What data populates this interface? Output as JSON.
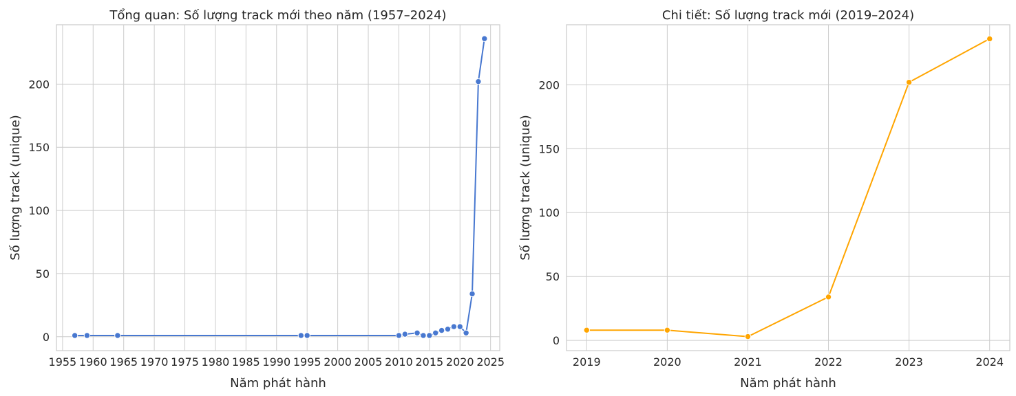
{
  "chart_data": [
    {
      "type": "line",
      "title": "Tổng quan: Số lượng track mới theo năm (1957–2024)",
      "xlabel": "Năm phát hành",
      "ylabel": "Số lượng track (unique)",
      "xlim": [
        1954,
        2026.5
      ],
      "ylim": [
        -11,
        247
      ],
      "x_ticks": [
        1955,
        1960,
        1965,
        1970,
        1975,
        1980,
        1985,
        1990,
        1995,
        2000,
        2005,
        2010,
        2015,
        2020,
        2025
      ],
      "y_ticks": [
        0,
        50,
        100,
        150,
        200
      ],
      "grid": true,
      "color": "#4878d0",
      "x": [
        1957,
        1959,
        1964,
        1994,
        1995,
        2010,
        2011,
        2013,
        2014,
        2015,
        2016,
        2017,
        2018,
        2019,
        2020,
        2021,
        2022,
        2023,
        2024
      ],
      "y": [
        1,
        1,
        1,
        1,
        1,
        1,
        2,
        3,
        1,
        1,
        3,
        5,
        6,
        8,
        8,
        3,
        34,
        202,
        236
      ]
    },
    {
      "type": "line",
      "title": "Chi tiết: Số lượng track mới (2019–2024)",
      "xlabel": "Năm phát hành",
      "ylabel": "Số lượng track (unique)",
      "xlim": [
        2018.75,
        2024.25
      ],
      "ylim": [
        -8,
        247
      ],
      "x_ticks": [
        2019,
        2020,
        2021,
        2022,
        2023,
        2024
      ],
      "y_ticks": [
        0,
        50,
        100,
        150,
        200
      ],
      "grid": true,
      "color": "#ffa500",
      "x": [
        2019,
        2020,
        2021,
        2022,
        2023,
        2024
      ],
      "y": [
        8,
        8,
        3,
        34,
        202,
        236
      ]
    }
  ]
}
